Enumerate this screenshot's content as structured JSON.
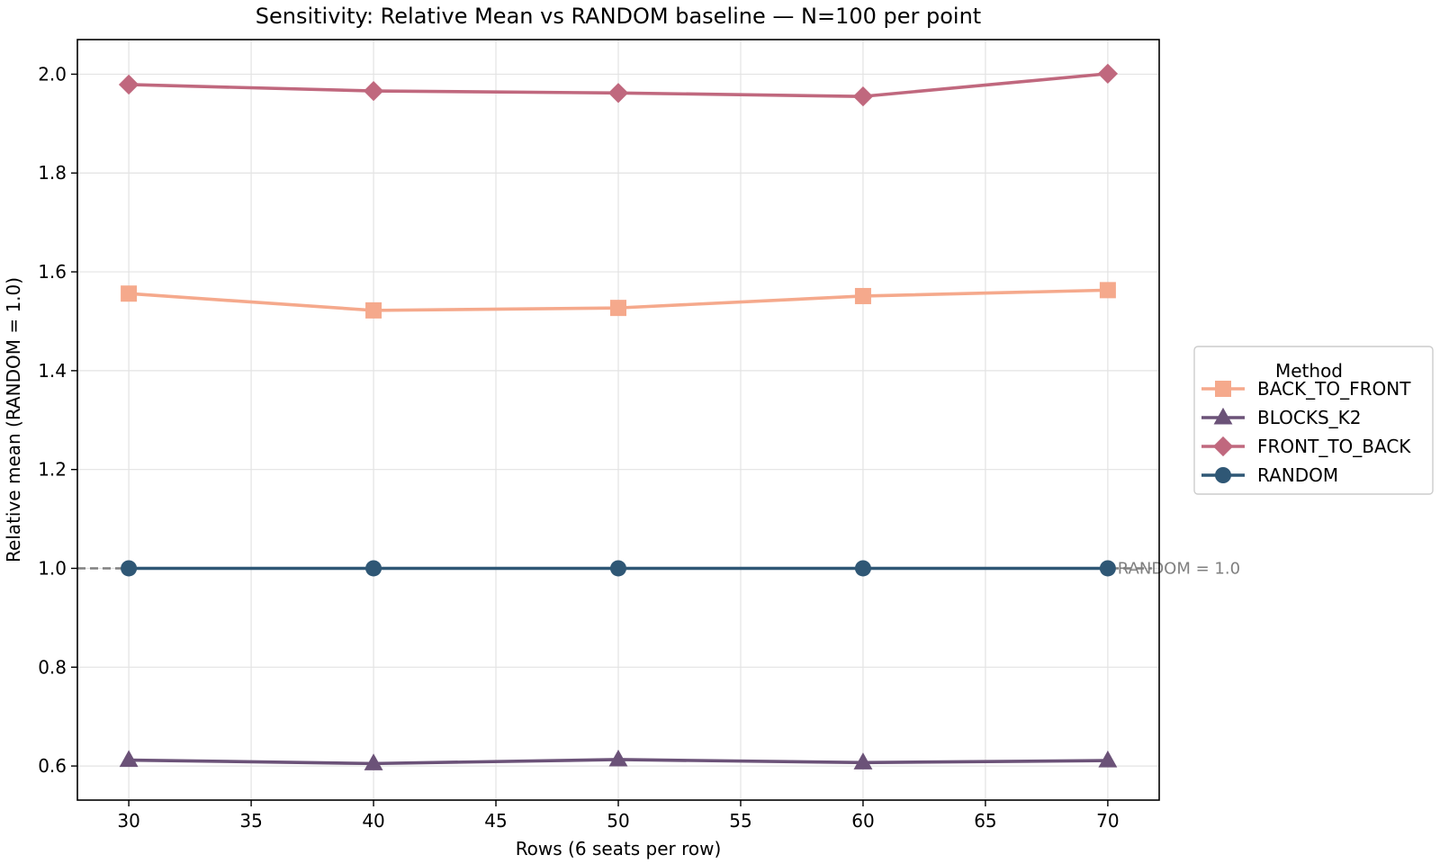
{
  "chart_data": {
    "type": "line",
    "title": "Sensitivity: Relative Mean vs RANDOM baseline — N=100 per point",
    "xlabel": "Rows (6 seats per row)",
    "ylabel": "Relative mean (RANDOM = 1.0)",
    "x": [
      30,
      40,
      50,
      60,
      70
    ],
    "xlim": [
      27.9,
      72.1
    ],
    "ylim": [
      0.531,
      2.07
    ],
    "xticks": [
      30,
      35,
      40,
      45,
      50,
      55,
      60,
      65,
      70
    ],
    "yticks": [
      0.6,
      0.8,
      1.0,
      1.2,
      1.4,
      1.6,
      1.8,
      2.0
    ],
    "grid": true,
    "legend": {
      "title": "Method",
      "placement": "outside-right"
    },
    "series": [
      {
        "name": "BACK_TO_FRONT",
        "marker": "square",
        "color": "#f5a98c",
        "values": [
          1.556,
          1.522,
          1.527,
          1.551,
          1.563
        ]
      },
      {
        "name": "BLOCKS_K2",
        "marker": "triangle",
        "color": "#6b5278",
        "values": [
          0.612,
          0.605,
          0.613,
          0.607,
          0.611
        ]
      },
      {
        "name": "FRONT_TO_BACK",
        "marker": "diamond",
        "color": "#c0687e",
        "values": [
          1.979,
          1.966,
          1.962,
          1.955,
          2.001
        ]
      },
      {
        "name": "RANDOM",
        "marker": "circle",
        "color": "#2f5775",
        "values": [
          1.0,
          1.0,
          1.0,
          1.0,
          1.0
        ]
      }
    ],
    "reference_line": {
      "y": 1.0,
      "label": "RANDOM = 1.0",
      "color": "#808080"
    }
  }
}
